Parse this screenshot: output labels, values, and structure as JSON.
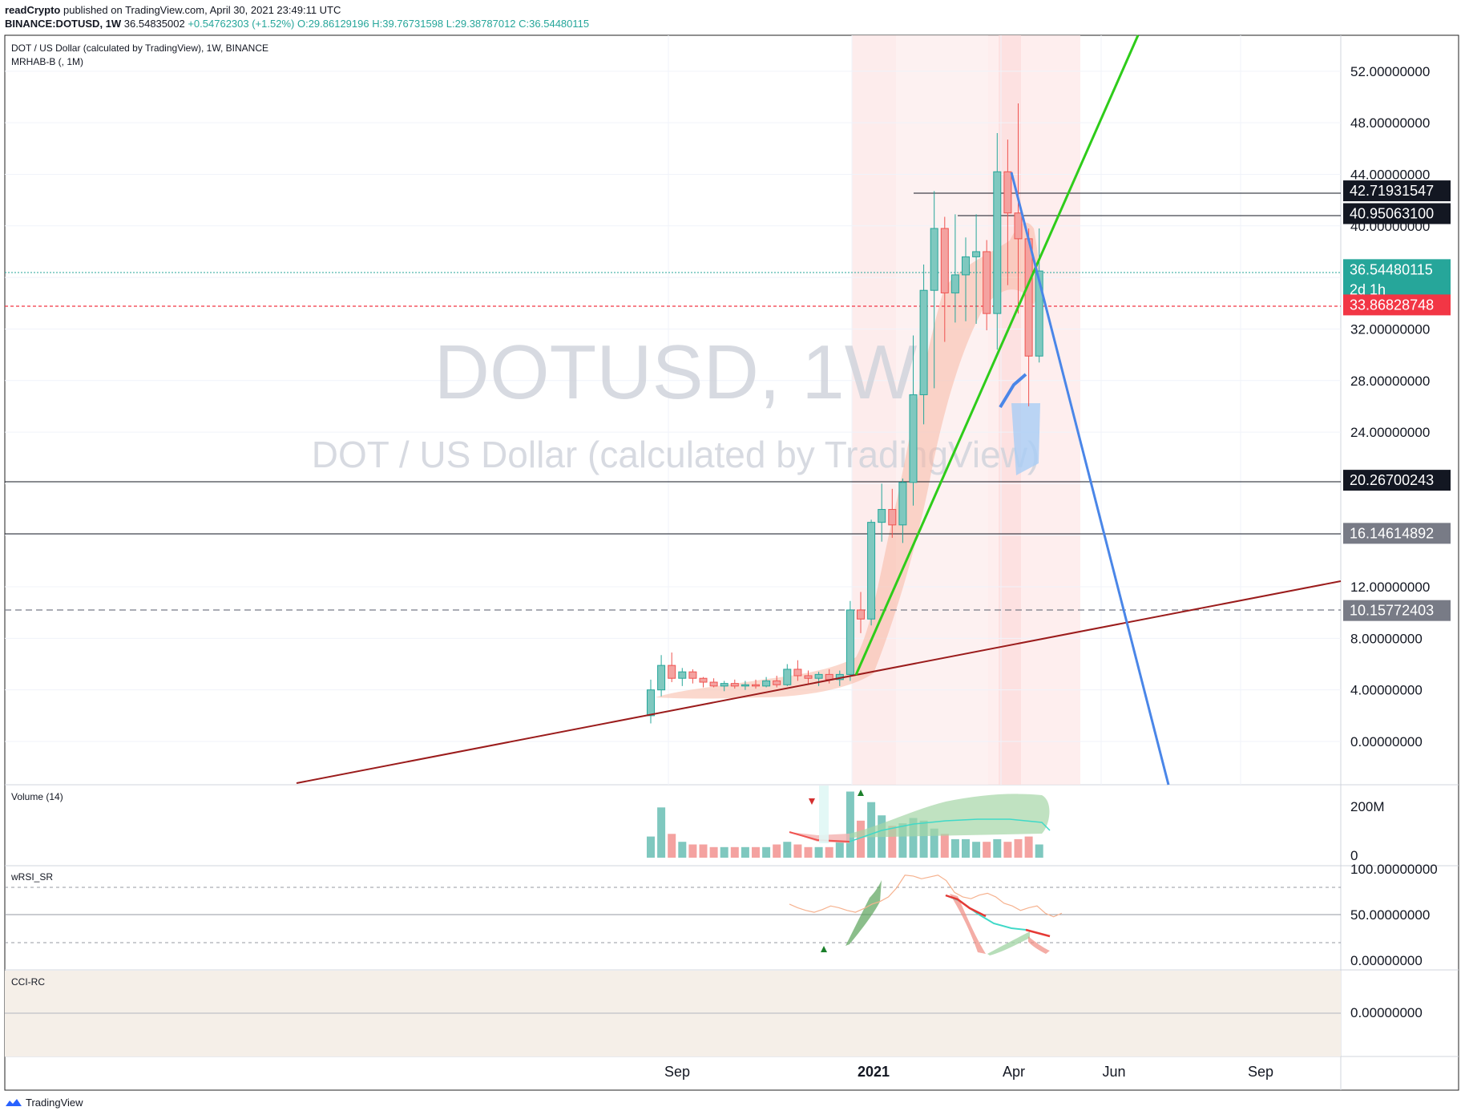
{
  "header": {
    "publisher": "readCrypto",
    "published_text": "published on TradingView.com, April 30, 2021 23:49:11 UTC",
    "symbol": "BINANCE:DOTUSD, 1W",
    "last": "36.54835002",
    "change": "+0.54762303 (+1.52%)",
    "o": "O:29.86129196",
    "h": "H:39.76731598",
    "l": "L:29.38787012",
    "c": "C:36.54480115"
  },
  "legend": {
    "title": "DOT / US Dollar (calculated by TradingView), 1W, BINANCE",
    "indicator": "MRHAB-B (, 1M)"
  },
  "watermark": {
    "main": "DOTUSD, 1W",
    "sub": "DOT / US Dollar (calculated by TradingView)"
  },
  "panes": {
    "volume": "Volume (14)",
    "rsi": "wRSI_SR",
    "cci": "CCI-RC"
  },
  "footer": {
    "brand": "TradingView"
  },
  "colors": {
    "up": "#26a69a",
    "down": "#ef5350",
    "up_body": "#7fc8bf",
    "down_body": "#f4a2a0",
    "green_line": "#2ecc1a",
    "blue_line": "#4a86e8",
    "red_line": "#9b1c1c",
    "label_dark": "#131722",
    "label_grey": "#787b86",
    "label_current": "#26a69a",
    "label_red": "#f23645"
  },
  "chart_data": {
    "type": "candlestick",
    "timeframe": "1W",
    "price_axis_ticks": [
      "52.00000000",
      "48.00000000",
      "44.00000000",
      "40.00000000",
      "32.00000000",
      "28.00000000",
      "24.00000000",
      "12.00000000",
      "8.00000000",
      "4.00000000",
      "0.00000000"
    ],
    "time_axis_ticks": [
      "Sep",
      "2021",
      "Apr",
      "Jun",
      "Sep"
    ],
    "volume_axis_ticks": [
      "200M",
      "0"
    ],
    "rsi_axis_ticks": [
      "100.00000000",
      "50.00000000",
      "0.00000000"
    ],
    "cci_axis_ticks": [
      "0.00000000"
    ],
    "price_labels": [
      {
        "value": 42.71931547,
        "text": "42.71931547",
        "style": "dark"
      },
      {
        "value": 40.950631,
        "text": "40.95063100",
        "style": "dark"
      },
      {
        "value": 36.54480115,
        "text": "36.54480115",
        "sub": "2d 1h",
        "style": "current"
      },
      {
        "value": 33.86828748,
        "text": "33.86828748",
        "style": "red"
      },
      {
        "value": 20.26700243,
        "text": "20.26700243",
        "style": "dark"
      },
      {
        "value": 16.14614892,
        "text": "16.14614892",
        "style": "grey"
      },
      {
        "value": 10.15772403,
        "text": "10.15772403",
        "style": "grey"
      }
    ],
    "candles": [
      {
        "t": 0,
        "o": 2.0,
        "h": 4.8,
        "l": 1.4,
        "c": 4.0
      },
      {
        "t": 1,
        "o": 4.0,
        "h": 6.7,
        "l": 3.5,
        "c": 5.9
      },
      {
        "t": 2,
        "o": 5.9,
        "h": 6.9,
        "l": 4.6,
        "c": 4.9
      },
      {
        "t": 3,
        "o": 4.9,
        "h": 5.7,
        "l": 4.3,
        "c": 5.4
      },
      {
        "t": 4,
        "o": 5.4,
        "h": 5.6,
        "l": 4.5,
        "c": 4.9
      },
      {
        "t": 5,
        "o": 4.9,
        "h": 5.0,
        "l": 4.2,
        "c": 4.6
      },
      {
        "t": 6,
        "o": 4.6,
        "h": 4.9,
        "l": 4.2,
        "c": 4.3
      },
      {
        "t": 7,
        "o": 4.3,
        "h": 4.7,
        "l": 3.9,
        "c": 4.5
      },
      {
        "t": 8,
        "o": 4.5,
        "h": 4.8,
        "l": 4.1,
        "c": 4.3
      },
      {
        "t": 9,
        "o": 4.3,
        "h": 4.7,
        "l": 4.0,
        "c": 4.4
      },
      {
        "t": 10,
        "o": 4.4,
        "h": 4.8,
        "l": 4.1,
        "c": 4.3
      },
      {
        "t": 11,
        "o": 4.3,
        "h": 5.0,
        "l": 4.2,
        "c": 4.7
      },
      {
        "t": 12,
        "o": 4.7,
        "h": 5.1,
        "l": 4.2,
        "c": 4.4
      },
      {
        "t": 13,
        "o": 4.4,
        "h": 6.0,
        "l": 4.3,
        "c": 5.6
      },
      {
        "t": 14,
        "o": 5.6,
        "h": 6.3,
        "l": 4.7,
        "c": 5.1
      },
      {
        "t": 15,
        "o": 5.1,
        "h": 5.5,
        "l": 4.5,
        "c": 4.9
      },
      {
        "t": 16,
        "o": 4.9,
        "h": 5.4,
        "l": 4.3,
        "c": 5.2
      },
      {
        "t": 17,
        "o": 5.2,
        "h": 5.6,
        "l": 4.5,
        "c": 4.8
      },
      {
        "t": 18,
        "o": 4.8,
        "h": 5.5,
        "l": 4.3,
        "c": 5.2
      },
      {
        "t": 19,
        "o": 5.2,
        "h": 10.9,
        "l": 4.7,
        "c": 10.2
      },
      {
        "t": 20,
        "o": 10.2,
        "h": 11.6,
        "l": 8.4,
        "c": 9.5
      },
      {
        "t": 21,
        "o": 9.5,
        "h": 17.2,
        "l": 9.0,
        "c": 17.0
      },
      {
        "t": 22,
        "o": 17.0,
        "h": 20.0,
        "l": 15.5,
        "c": 18.0
      },
      {
        "t": 23,
        "o": 18.0,
        "h": 19.6,
        "l": 15.8,
        "c": 16.8
      },
      {
        "t": 24,
        "o": 16.8,
        "h": 20.4,
        "l": 15.4,
        "c": 20.1
      },
      {
        "t": 25,
        "o": 20.1,
        "h": 31.5,
        "l": 18.3,
        "c": 26.9
      },
      {
        "t": 26,
        "o": 26.9,
        "h": 37.0,
        "l": 24.6,
        "c": 35.0
      },
      {
        "t": 27,
        "o": 35.0,
        "h": 42.7,
        "l": 27.4,
        "c": 39.8
      },
      {
        "t": 28,
        "o": 39.8,
        "h": 40.7,
        "l": 31.0,
        "c": 34.8
      },
      {
        "t": 29,
        "o": 34.8,
        "h": 40.9,
        "l": 32.5,
        "c": 36.2
      },
      {
        "t": 30,
        "o": 36.2,
        "h": 39.1,
        "l": 32.6,
        "c": 37.6
      },
      {
        "t": 31,
        "o": 37.6,
        "h": 40.9,
        "l": 32.4,
        "c": 38.0
      },
      {
        "t": 32,
        "o": 38.0,
        "h": 38.9,
        "l": 31.9,
        "c": 33.2
      },
      {
        "t": 33,
        "o": 33.2,
        "h": 47.2,
        "l": 30.4,
        "c": 44.2
      },
      {
        "t": 34,
        "o": 44.2,
        "h": 46.7,
        "l": 35.4,
        "c": 41.0
      },
      {
        "t": 35,
        "o": 41.0,
        "h": 49.5,
        "l": 33.2,
        "c": 39.0
      },
      {
        "t": 36,
        "o": 39.0,
        "h": 39.8,
        "l": 26.0,
        "c": 29.9
      },
      {
        "t": 37,
        "o": 29.9,
        "h": 39.8,
        "l": 29.4,
        "c": 36.5
      }
    ],
    "volume_relative": [
      0.08,
      0.19,
      0.09,
      0.06,
      0.05,
      0.05,
      0.04,
      0.04,
      0.04,
      0.04,
      0.04,
      0.04,
      0.05,
      0.06,
      0.05,
      0.04,
      0.04,
      0.04,
      0.06,
      0.25,
      0.14,
      0.21,
      0.16,
      0.12,
      0.13,
      0.15,
      0.14,
      0.11,
      0.09,
      0.07,
      0.07,
      0.06,
      0.06,
      0.07,
      0.06,
      0.07,
      0.08,
      0.05
    ],
    "rsi": [
      62,
      58,
      55,
      53,
      56,
      60,
      58,
      55,
      53,
      57,
      62,
      65,
      70,
      80,
      94,
      93,
      90,
      92,
      94,
      88,
      75,
      70,
      68,
      72,
      74,
      70,
      63,
      60,
      55,
      58,
      60,
      52,
      48,
      52
    ]
  }
}
